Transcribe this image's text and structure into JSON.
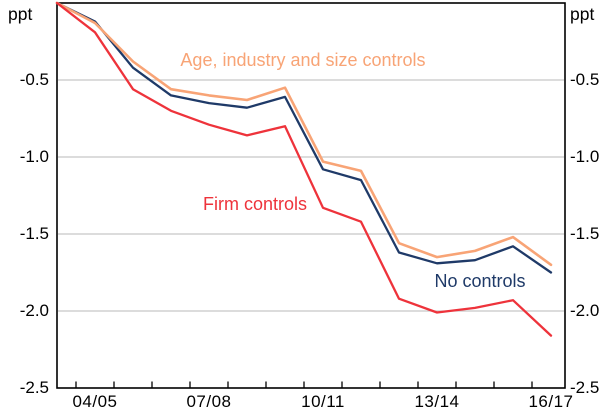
{
  "axes": {
    "left_unit": "ppt",
    "right_unit": "ppt",
    "y_tick_labels": [
      "-0.5",
      "-1.0",
      "-1.5",
      "-2.0",
      "-2.5"
    ],
    "y_tick_values": [
      -0.5,
      -1.0,
      -1.5,
      -2.0,
      -2.5
    ],
    "x_tick_labels": [
      "04/05",
      "07/08",
      "10/11",
      "13/14",
      "16/17"
    ],
    "x_tick_label_indices": [
      1,
      4,
      7,
      10,
      13
    ]
  },
  "colors": {
    "navy": "#1f3a68",
    "orange": "#f8a476",
    "red": "#ee333b",
    "gridline": "#c8c8c8",
    "axis": "#000000",
    "background": "#ffffff"
  },
  "chart_data": {
    "type": "line",
    "x": [
      "03/04",
      "04/05",
      "05/06",
      "06/07",
      "07/08",
      "08/09",
      "09/10",
      "10/11",
      "11/12",
      "12/13",
      "13/14",
      "14/15",
      "15/16",
      "16/17"
    ],
    "visible_x_labels": [
      "04/05",
      "07/08",
      "10/11",
      "13/14",
      "16/17"
    ],
    "ylabel": "ppt",
    "ylim": [
      -2.5,
      0
    ],
    "gridlines_y": [
      -0.5,
      -1.0,
      -1.5,
      -2.0
    ],
    "grid": "horizontal only",
    "legend_position": "inline annotations",
    "series": [
      {
        "name": "No controls",
        "color": "#1f3a68",
        "values": [
          0,
          -0.12,
          -0.42,
          -0.6,
          -0.65,
          -0.68,
          -0.61,
          -1.08,
          -1.15,
          -1.62,
          -1.69,
          -1.67,
          -1.58,
          -1.75
        ]
      },
      {
        "name": "Age, industry and size controls",
        "color": "#f8a476",
        "values": [
          0,
          -0.13,
          -0.38,
          -0.56,
          -0.6,
          -0.63,
          -0.55,
          -1.03,
          -1.09,
          -1.56,
          -1.65,
          -1.61,
          -1.52,
          -1.7
        ]
      },
      {
        "name": "Firm controls",
        "color": "#ee333b",
        "values": [
          0,
          -0.19,
          -0.56,
          -0.7,
          -0.79,
          -0.86,
          -0.8,
          -1.33,
          -1.42,
          -1.92,
          -2.01,
          -1.98,
          -1.93,
          -2.16
        ]
      }
    ]
  },
  "geometry_note": "plot box left 57, right 565, top 3, bottom 388; one data point per year, ticks at year midpoints"
}
